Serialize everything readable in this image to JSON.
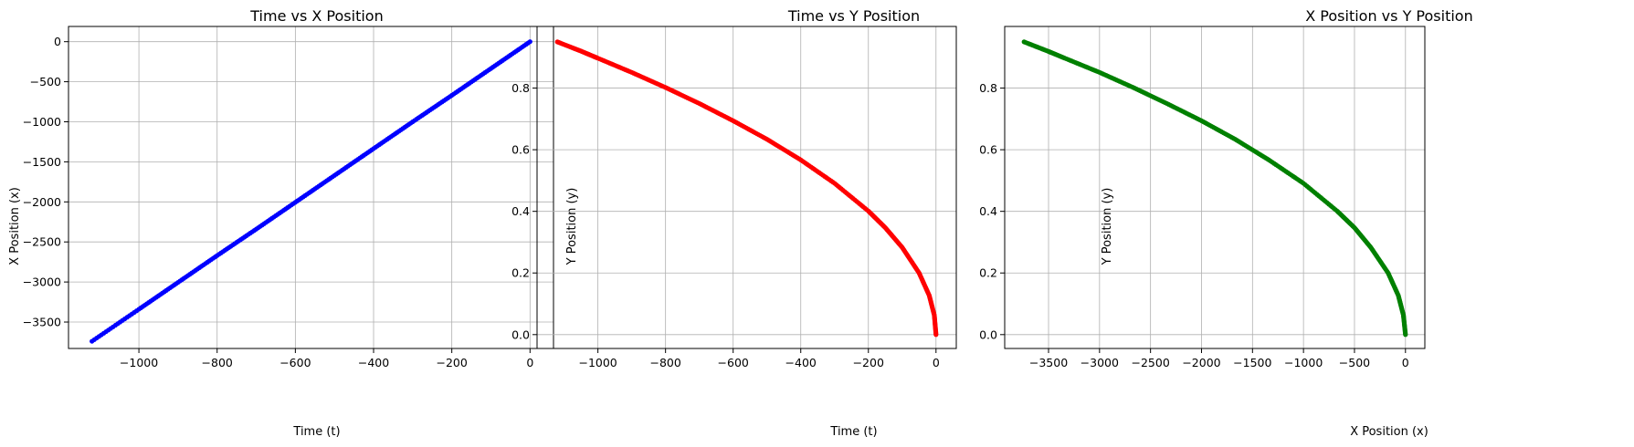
{
  "colors": {
    "blue": "#0000ff",
    "red": "#ff0000",
    "green": "#008000",
    "grid": "#b0b0b0"
  },
  "chart_data": [
    {
      "type": "scatter",
      "title": "Time vs X Position",
      "xlabel": "Time (t)",
      "ylabel": "X Position (x)",
      "xlim": [
        -1180,
        60
      ],
      "ylim": [
        -3830,
        190
      ],
      "xticks": [
        -1000,
        -800,
        -600,
        -400,
        -200,
        0
      ],
      "xtick_labels": [
        "−1000",
        "−800",
        "−600",
        "−400",
        "−200",
        "0"
      ],
      "yticks": [
        -3500,
        -3000,
        -2500,
        -2000,
        -1500,
        -1000,
        -500,
        0
      ],
      "ytick_labels": [
        "−3500",
        "−3000",
        "−2500",
        "−2000",
        "−1500",
        "−1000",
        "−500",
        "0"
      ],
      "grid": true,
      "color": "#0000ff",
      "series": [
        {
          "x": [
            -1120,
            -1000,
            -900,
            -800,
            -700,
            -600,
            -500,
            -400,
            -300,
            -200,
            -100,
            0
          ],
          "y": [
            -3740,
            -3340,
            -3005,
            -2670,
            -2340,
            -2005,
            -1670,
            -1335,
            -1000,
            -670,
            -335,
            0
          ]
        }
      ]
    },
    {
      "type": "scatter",
      "title": "Time vs Y Position",
      "xlabel": "Time (t)",
      "ylabel": "Y Position (y)",
      "xlim": [
        -1180,
        60
      ],
      "ylim": [
        -0.045,
        1.0
      ],
      "xticks": [
        -1000,
        -800,
        -600,
        -400,
        -200,
        0
      ],
      "xtick_labels": [
        "−1000",
        "−800",
        "−600",
        "−400",
        "−200",
        "0"
      ],
      "yticks": [
        0.0,
        0.2,
        0.4,
        0.6,
        0.8
      ],
      "ytick_labels": [
        "0.0",
        "0.2",
        "0.4",
        "0.6",
        "0.8"
      ],
      "grid": true,
      "color": "#ff0000",
      "series": [
        {
          "x": [
            -1120,
            -1050,
            -1000,
            -900,
            -800,
            -700,
            -600,
            -500,
            -400,
            -300,
            -200,
            -150,
            -100,
            -50,
            -20,
            -5,
            0
          ],
          "y": [
            0.95,
            0.92,
            0.897,
            0.851,
            0.802,
            0.75,
            0.694,
            0.634,
            0.567,
            0.491,
            0.401,
            0.347,
            0.283,
            0.2,
            0.127,
            0.063,
            0.0
          ]
        }
      ]
    },
    {
      "type": "scatter",
      "title": "X Position vs Y Position",
      "xlabel": "X Position (x)",
      "ylabel": "Y Position (y)",
      "xlim": [
        -3930,
        190
      ],
      "ylim": [
        -0.045,
        1.0
      ],
      "xticks": [
        -3500,
        -3000,
        -2500,
        -2000,
        -1500,
        -1000,
        -500,
        0
      ],
      "xtick_labels": [
        "−3500",
        "−3000",
        "−2500",
        "−2000",
        "−1500",
        "−1000",
        "−500",
        "0"
      ],
      "yticks": [
        0.0,
        0.2,
        0.4,
        0.6,
        0.8
      ],
      "ytick_labels": [
        "0.0",
        "0.2",
        "0.4",
        "0.6",
        "0.8"
      ],
      "grid": true,
      "color": "#008000",
      "series": [
        {
          "x": [
            -3740,
            -3500,
            -3340,
            -3000,
            -2670,
            -2340,
            -2000,
            -1670,
            -1340,
            -1000,
            -670,
            -500,
            -340,
            -170,
            -70,
            -20,
            0
          ],
          "y": [
            0.95,
            0.919,
            0.897,
            0.851,
            0.802,
            0.75,
            0.694,
            0.634,
            0.567,
            0.491,
            0.401,
            0.347,
            0.283,
            0.2,
            0.127,
            0.063,
            0.0
          ]
        }
      ]
    }
  ]
}
